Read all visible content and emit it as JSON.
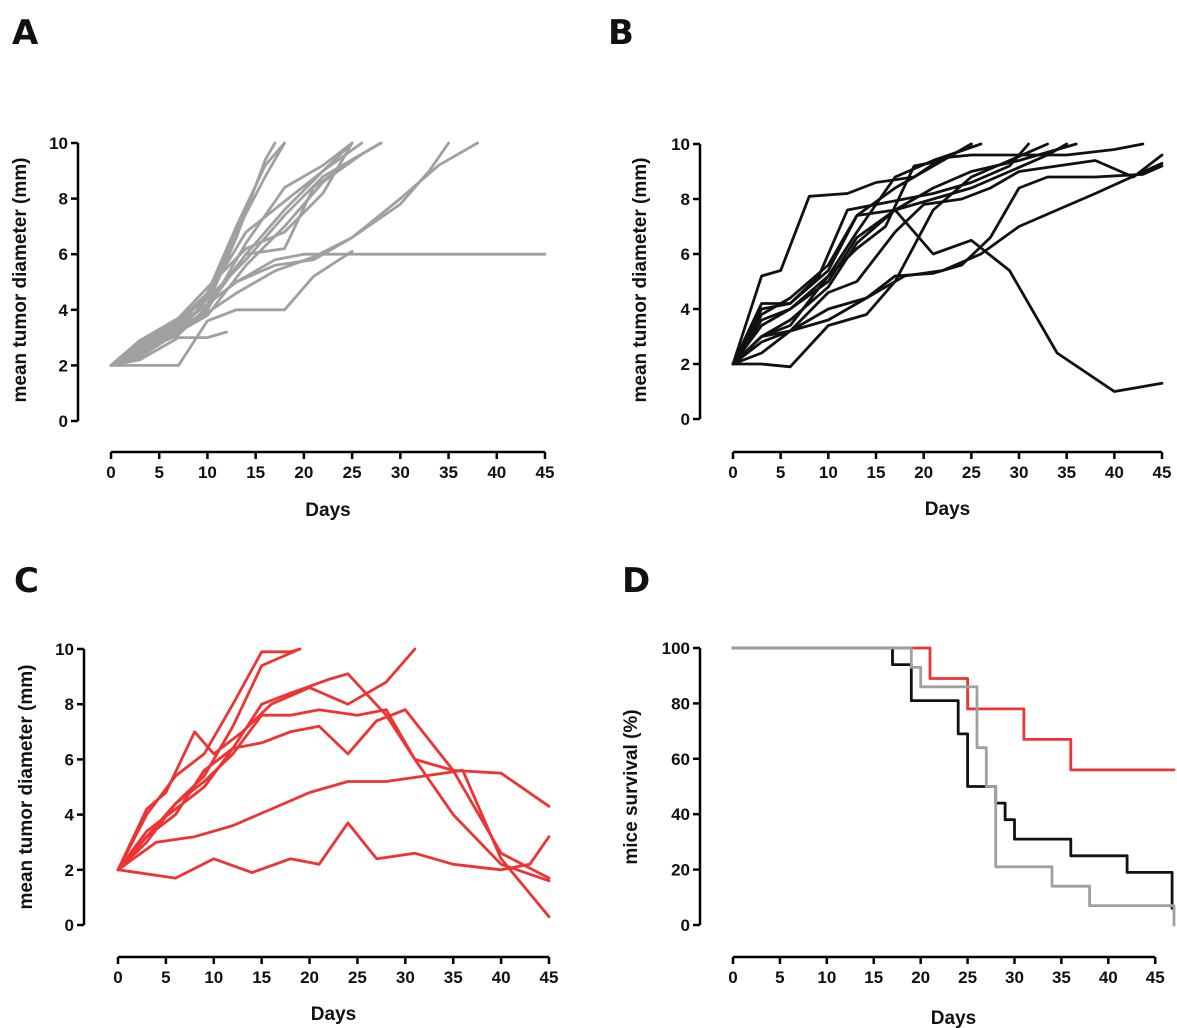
{
  "colors": {
    "grey": "#a0a0a0",
    "black": "#111111",
    "red": "#ee3333"
  },
  "chart_data": [
    {
      "panel": "A",
      "type": "line",
      "title": "",
      "xlabel": "Days",
      "ylabel": "mean tumor diameter (mm)",
      "xlim": [
        0,
        45
      ],
      "ylim": [
        0,
        10
      ],
      "xticks": [
        0,
        5,
        10,
        15,
        20,
        25,
        30,
        35,
        40,
        45
      ],
      "yticks": [
        0,
        2,
        4,
        6,
        8,
        10
      ],
      "color": "#a0a0a0",
      "series": [
        {
          "x": [
            0,
            3,
            7,
            10,
            13,
            16,
            17
          ],
          "y": [
            2,
            2.8,
            3.4,
            4.2,
            6.6,
            9.4,
            10
          ]
        },
        {
          "x": [
            0,
            3,
            7,
            10,
            13,
            16,
            18
          ],
          "y": [
            2,
            2.5,
            3.2,
            4.4,
            6.8,
            8.8,
            10
          ]
        },
        {
          "x": [
            0,
            3,
            7,
            10,
            13,
            16,
            18
          ],
          "y": [
            2,
            2.6,
            3.6,
            4.6,
            7.0,
            9.2,
            10
          ]
        },
        {
          "x": [
            0,
            3,
            7,
            10,
            14,
            18,
            22,
            25
          ],
          "y": [
            2,
            2.9,
            3.4,
            4.2,
            6.0,
            7.6,
            9.0,
            10
          ]
        },
        {
          "x": [
            0,
            3,
            7,
            10,
            14,
            18,
            22,
            25
          ],
          "y": [
            2,
            2.6,
            3.3,
            4.0,
            6.4,
            8.4,
            9.2,
            10
          ]
        },
        {
          "x": [
            0,
            3,
            7,
            10,
            14,
            18,
            22,
            26
          ],
          "y": [
            2,
            2.7,
            3.5,
            4.5,
            6.8,
            7.9,
            9.0,
            10
          ]
        },
        {
          "x": [
            0,
            3,
            7,
            10,
            14,
            18,
            22,
            26,
            28
          ],
          "y": [
            2,
            2.4,
            3.2,
            3.8,
            5.6,
            7.0,
            8.6,
            9.6,
            10
          ]
        },
        {
          "x": [
            0,
            3,
            7,
            10,
            14,
            18,
            22,
            26,
            28
          ],
          "y": [
            2,
            2.8,
            3.6,
            4.4,
            5.8,
            7.4,
            8.8,
            9.6,
            10
          ]
        },
        {
          "x": [
            0,
            3,
            7,
            10,
            14,
            18,
            21,
            25,
            28
          ],
          "y": [
            2,
            2.5,
            3.1,
            4.1,
            6.0,
            6.2,
            8.4,
            9.4,
            10
          ]
        },
        {
          "x": [
            0,
            3,
            7,
            10,
            14,
            18,
            22,
            25
          ],
          "y": [
            2,
            2.9,
            3.7,
            4.8,
            6.2,
            6.8,
            8.2,
            10
          ]
        },
        {
          "x": [
            0,
            3,
            7,
            10,
            13,
            17,
            21,
            25,
            30,
            33,
            35
          ],
          "y": [
            2,
            2.6,
            3.4,
            4.2,
            5.0,
            5.6,
            5.8,
            6.6,
            7.8,
            9.0,
            10
          ]
        },
        {
          "x": [
            0,
            3,
            7,
            10,
            13,
            17,
            21,
            25,
            30,
            34,
            38
          ],
          "y": [
            2,
            2.3,
            3.2,
            3.9,
            4.6,
            5.4,
            5.9,
            6.6,
            8.0,
            9.2,
            10
          ]
        },
        {
          "x": [
            0,
            3,
            7,
            10,
            13,
            17,
            20,
            25,
            30,
            35,
            40,
            45
          ],
          "y": [
            2,
            2.7,
            3.5,
            4.2,
            5.0,
            5.8,
            6.0,
            6.0,
            6.0,
            6.0,
            6.0,
            6.0
          ]
        },
        {
          "x": [
            0,
            7,
            10,
            13,
            18,
            21,
            25
          ],
          "y": [
            2,
            2,
            3.6,
            4,
            4,
            5.2,
            6.1
          ]
        },
        {
          "x": [
            0,
            3,
            7,
            10,
            12
          ],
          "y": [
            2,
            2.2,
            3.0,
            3.0,
            3.2
          ]
        }
      ]
    },
    {
      "panel": "B",
      "type": "line",
      "title": "",
      "xlabel": "Days",
      "ylabel": "mean tumor diameter (mm)",
      "xlim": [
        0,
        45
      ],
      "ylim": [
        0,
        10
      ],
      "xticks": [
        0,
        5,
        10,
        15,
        20,
        25,
        30,
        35,
        40,
        45
      ],
      "yticks": [
        0,
        2,
        4,
        6,
        8,
        10
      ],
      "color": "#111111",
      "series": [
        {
          "x": [
            0,
            3,
            5,
            8,
            12,
            15,
            19,
            22,
            25,
            30,
            35,
            40,
            43
          ],
          "y": [
            2,
            5.2,
            5.4,
            8.1,
            8.2,
            8.6,
            8.8,
            9.5,
            9.6,
            9.6,
            9.6,
            9.8,
            10
          ]
        },
        {
          "x": [
            0,
            3,
            6,
            10,
            13,
            17,
            21,
            25
          ],
          "y": [
            2,
            3.8,
            4.4,
            5.6,
            7.4,
            8.4,
            9.2,
            10
          ]
        },
        {
          "x": [
            0,
            3,
            6,
            10,
            13,
            17,
            21,
            26
          ],
          "y": [
            2,
            3.4,
            4.0,
            5.2,
            6.8,
            8.8,
            9.4,
            10
          ]
        },
        {
          "x": [
            0,
            3,
            6,
            10,
            13,
            17,
            21,
            25,
            30,
            36
          ],
          "y": [
            2,
            3.0,
            3.6,
            4.8,
            6.4,
            7.6,
            8.4,
            9.0,
            9.4,
            10
          ]
        },
        {
          "x": [
            0,
            3,
            6,
            10,
            13,
            17,
            21,
            25,
            29,
            33,
            35
          ],
          "y": [
            2,
            3.6,
            4.0,
            5.0,
            6.6,
            7.6,
            8.0,
            8.4,
            9.0,
            9.6,
            10
          ]
        },
        {
          "x": [
            0,
            3,
            6,
            10,
            13,
            17,
            21,
            25,
            29,
            34,
            40,
            45
          ],
          "y": [
            2,
            4.0,
            4.2,
            5.4,
            7.4,
            7.6,
            6.0,
            6.5,
            5.4,
            2.4,
            1.0,
            1.3
          ]
        },
        {
          "x": [
            0,
            3,
            6,
            9,
            12,
            15,
            18,
            21,
            25,
            29,
            31
          ],
          "y": [
            2,
            4.2,
            4.2,
            5.2,
            7.6,
            7.8,
            8.0,
            8.2,
            8.6,
            9.2,
            10
          ]
        },
        {
          "x": [
            0,
            3,
            6,
            10,
            13,
            17,
            20,
            24,
            27,
            30,
            34,
            38,
            42,
            45
          ],
          "y": [
            2,
            3.0,
            3.2,
            4.6,
            5.0,
            6.8,
            7.8,
            8.0,
            8.4,
            9.0,
            9.2,
            9.4,
            8.8,
            9.6
          ]
        },
        {
          "x": [
            0,
            3,
            6,
            10,
            14,
            18,
            22,
            26,
            30,
            34,
            38,
            45
          ],
          "y": [
            2,
            2.8,
            3.2,
            4.0,
            4.4,
            5.2,
            5.4,
            6.0,
            7.0,
            7.6,
            8.2,
            9.3
          ]
        },
        {
          "x": [
            0,
            3,
            6,
            10,
            14,
            17,
            21,
            24,
            27,
            30,
            33,
            38,
            43,
            45
          ],
          "y": [
            2,
            2.4,
            3.2,
            3.6,
            4.4,
            5.2,
            5.3,
            5.6,
            6.6,
            8.4,
            8.8,
            8.8,
            8.9,
            9.2
          ]
        },
        {
          "x": [
            0,
            3,
            6,
            10,
            14,
            17,
            21,
            25,
            29,
            33
          ],
          "y": [
            2,
            2.0,
            1.9,
            3.4,
            3.8,
            5.0,
            7.6,
            8.8,
            9.4,
            10
          ]
        },
        {
          "x": [
            0,
            3,
            6,
            10,
            13,
            16,
            19,
            22,
            25
          ],
          "y": [
            2,
            3.0,
            3.4,
            5.2,
            6.2,
            7.0,
            9.2,
            9.4,
            10
          ]
        }
      ]
    },
    {
      "panel": "C",
      "type": "line",
      "title": "",
      "xlabel": "Days",
      "ylabel": "mean tumor diameter (mm)",
      "xlim": [
        0,
        45
      ],
      "ylim": [
        0,
        10
      ],
      "xticks": [
        0,
        5,
        10,
        15,
        20,
        25,
        30,
        35,
        40,
        45
      ],
      "yticks": [
        0,
        2,
        4,
        6,
        8,
        10
      ],
      "color": "#ee3333",
      "series": [
        {
          "x": [
            0,
            3,
            6,
            9,
            12,
            15,
            18,
            19
          ],
          "y": [
            2,
            4.0,
            5.4,
            6.2,
            8.0,
            9.9,
            9.9,
            10
          ]
        },
        {
          "x": [
            0,
            3,
            6,
            9,
            12,
            15,
            19
          ],
          "y": [
            2,
            3.2,
            4.4,
            5.4,
            7.2,
            9.4,
            10
          ]
        },
        {
          "x": [
            0,
            3,
            5,
            8,
            10,
            13,
            16,
            20,
            24,
            28,
            31
          ],
          "y": [
            2,
            4.2,
            4.8,
            7.0,
            6.2,
            7.0,
            8.0,
            8.6,
            8.0,
            8.8,
            10
          ]
        },
        {
          "x": [
            0,
            3,
            6,
            9,
            12,
            15,
            18,
            22,
            24,
            28,
            31,
            35,
            40,
            45
          ],
          "y": [
            2,
            3.2,
            4.0,
            5.6,
            6.4,
            8.0,
            8.4,
            8.9,
            9.1,
            7.6,
            6.0,
            5.6,
            5.5,
            4.3
          ]
        },
        {
          "x": [
            0,
            3,
            6,
            9,
            12,
            15,
            18,
            21,
            25,
            28,
            31,
            35,
            40,
            45
          ],
          "y": [
            2,
            3.0,
            4.4,
            5.2,
            6.2,
            7.6,
            7.6,
            7.8,
            7.6,
            7.8,
            6.0,
            4.0,
            2.2,
            1.6
          ]
        },
        {
          "x": [
            0,
            3,
            6,
            9,
            12,
            15,
            18,
            21,
            24,
            27,
            30,
            35,
            40,
            45
          ],
          "y": [
            2,
            3.4,
            4.2,
            5.0,
            6.4,
            6.6,
            7.0,
            7.2,
            6.2,
            7.4,
            7.8,
            5.6,
            2.6,
            1.7
          ]
        },
        {
          "x": [
            0,
            4,
            8,
            12,
            16,
            20,
            24,
            28,
            32,
            36,
            40,
            45
          ],
          "y": [
            2,
            3.0,
            3.2,
            3.6,
            4.2,
            4.8,
            5.2,
            5.2,
            5.4,
            5.6,
            2.4,
            0.3
          ]
        },
        {
          "x": [
            0,
            6,
            10,
            14,
            18,
            21,
            24,
            27,
            31,
            35,
            40,
            43,
            45
          ],
          "y": [
            2,
            1.7,
            2.4,
            1.9,
            2.4,
            2.2,
            3.7,
            2.4,
            2.6,
            2.2,
            2.0,
            2.2,
            3.2
          ]
        }
      ]
    },
    {
      "panel": "D",
      "type": "line",
      "title": "",
      "xlabel": "Days",
      "ylabel": "mice survival (%)",
      "xlim": [
        0,
        47
      ],
      "ylim": [
        0,
        100
      ],
      "xticks": [
        0,
        5,
        10,
        15,
        20,
        25,
        30,
        35,
        40,
        45
      ],
      "yticks": [
        0,
        20,
        40,
        60,
        80,
        100
      ],
      "step": true,
      "series": [
        {
          "color": "#ee3333",
          "x": [
            0,
            21,
            25,
            31,
            36,
            47
          ],
          "y": [
            100,
            89,
            78,
            67,
            56,
            56
          ]
        },
        {
          "color": "#111111",
          "x": [
            0,
            17,
            19,
            24,
            25,
            28,
            29,
            30,
            36,
            42,
            46.8
          ],
          "y": [
            100,
            94,
            81,
            69,
            50,
            44,
            38,
            31,
            25,
            19,
            6
          ]
        },
        {
          "color": "#a0a0a0",
          "x": [
            0,
            19,
            20,
            26,
            27,
            28,
            34,
            38,
            47
          ],
          "y": [
            100,
            93,
            86,
            64,
            50,
            21,
            14,
            7,
            0
          ]
        }
      ]
    }
  ]
}
